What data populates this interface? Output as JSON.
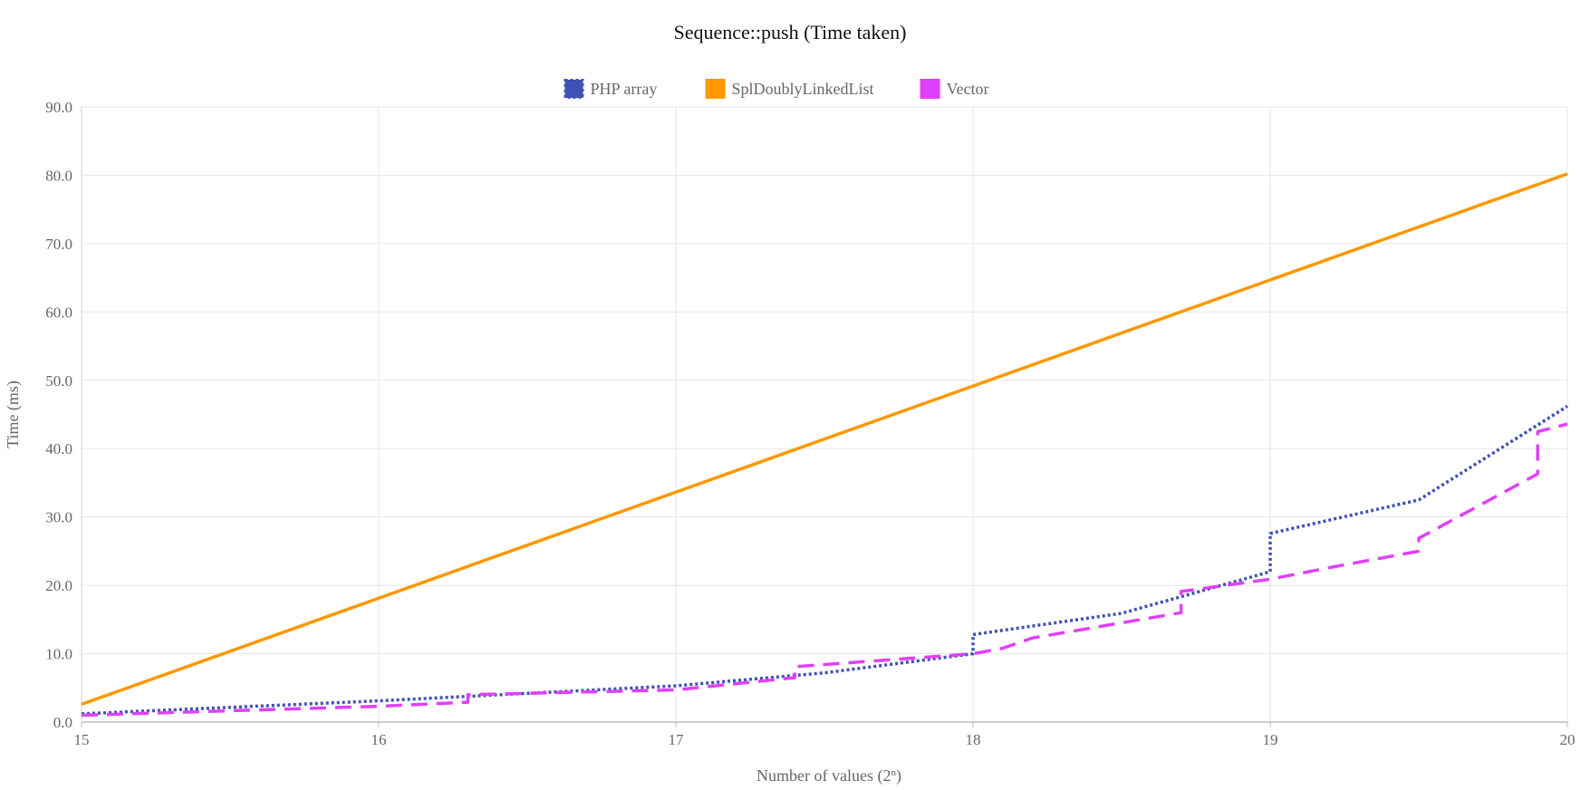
{
  "chart_data": {
    "type": "line",
    "title": "Sequence::push (Time taken)",
    "xlabel_base": "Number of values (2",
    "xlabel_sup": "n",
    "xlabel_end": ")",
    "ylabel": "Time (ms)",
    "xlim": [
      15,
      20
    ],
    "ylim": [
      0,
      90
    ],
    "y_ticks": [
      0,
      10,
      20,
      30,
      40,
      50,
      60,
      70,
      80,
      90
    ],
    "y_tick_labels": [
      "0.0",
      "10.0",
      "20.0",
      "30.0",
      "40.0",
      "50.0",
      "60.0",
      "70.0",
      "80.0",
      "90.0"
    ],
    "x_ticks": [
      15,
      16,
      17,
      18,
      19,
      20
    ],
    "x_tick_labels": [
      "15",
      "16",
      "17",
      "18",
      "19",
      "20"
    ],
    "legend_position": "top-center",
    "grid": true,
    "series": [
      {
        "name": "PHP array",
        "color": "#3f51b5",
        "style": "dotted",
        "points": [
          [
            15,
            1.2
          ],
          [
            16,
            3.1
          ],
          [
            17,
            5.3
          ],
          [
            17.5,
            7.2
          ],
          [
            18,
            10.0
          ],
          [
            18,
            12.8
          ],
          [
            18.5,
            15.9
          ],
          [
            19,
            22.0
          ],
          [
            19,
            27.6
          ],
          [
            19.5,
            32.5
          ],
          [
            20,
            46.2
          ]
        ]
      },
      {
        "name": "SplDoublyLinkedList",
        "color": "#ff9800",
        "style": "solid",
        "points": [
          [
            15,
            2.6
          ],
          [
            20,
            80.2
          ]
        ]
      },
      {
        "name": "Vector",
        "color": "#e040fb",
        "style": "dashed",
        "points": [
          [
            15,
            1.0
          ],
          [
            16,
            2.3
          ],
          [
            16.3,
            2.9
          ],
          [
            16.3,
            4.0
          ],
          [
            17,
            4.7
          ],
          [
            17.4,
            6.5
          ],
          [
            17.4,
            8.1
          ],
          [
            18,
            10.0
          ],
          [
            18.1,
            10.8
          ],
          [
            18.2,
            12.3
          ],
          [
            18.7,
            16.0
          ],
          [
            18.7,
            19.1
          ],
          [
            19,
            20.9
          ],
          [
            19.2,
            22.6
          ],
          [
            19.5,
            25.0
          ],
          [
            19.5,
            26.9
          ],
          [
            19.9,
            36.3
          ],
          [
            19.9,
            42.5
          ],
          [
            20,
            43.6
          ]
        ]
      }
    ]
  }
}
